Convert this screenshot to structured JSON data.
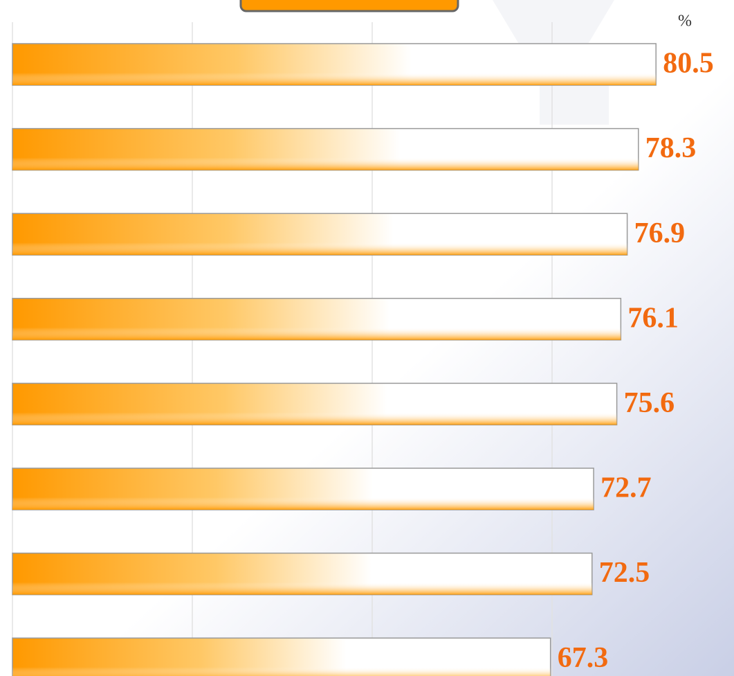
{
  "chart_data": {
    "type": "hbar",
    "unit_label": "%",
    "values": [
      80.5,
      78.3,
      76.9,
      76.1,
      75.6,
      72.7,
      72.5,
      67.3
    ],
    "color": "#ff9900",
    "label_color": "#f26a10",
    "xlim": [
      0,
      90
    ],
    "xticks": [
      0,
      22.5,
      45,
      67.5
    ],
    "grid": true
  }
}
